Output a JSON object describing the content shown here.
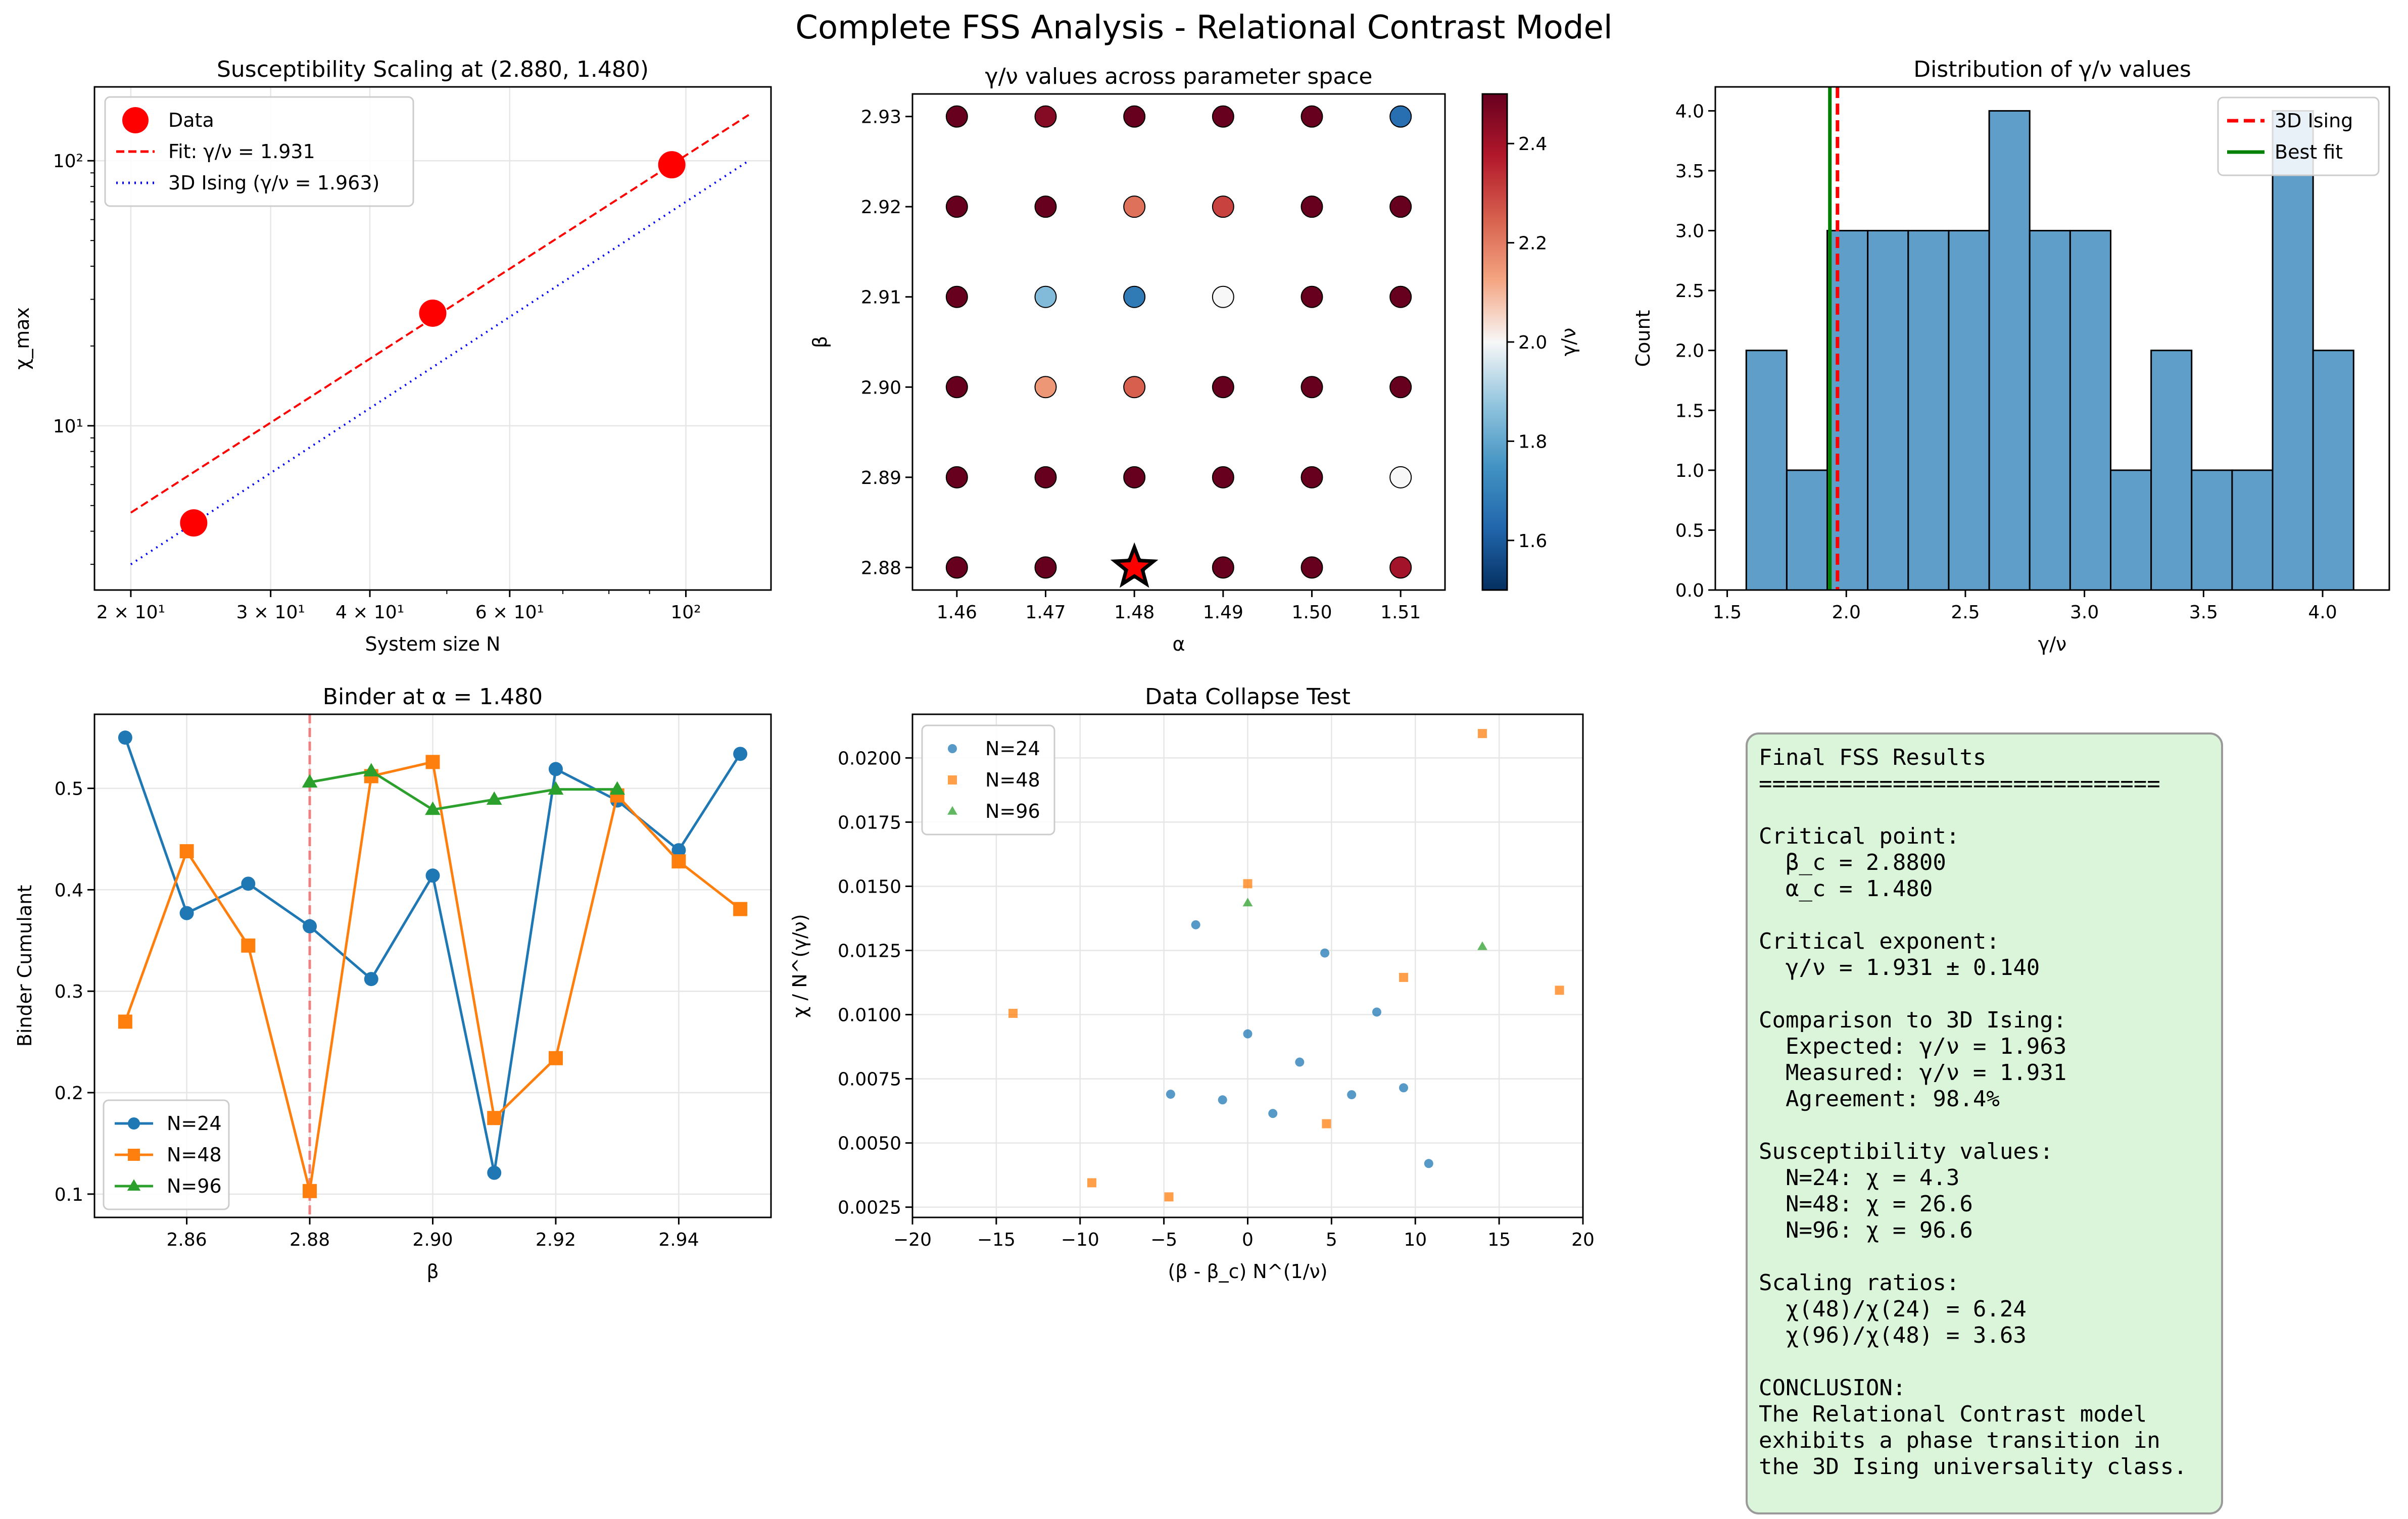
{
  "figure_title": "Complete FSS Analysis - Relational Contrast Model",
  "chart_data": [
    {
      "id": "susceptibility",
      "type": "scatter",
      "title": "Susceptibility Scaling at (2.880, 1.480)",
      "xlabel": "System size N",
      "ylabel": "χ_max",
      "xscale": "log",
      "yscale": "log",
      "xlim": [
        18,
        128
      ],
      "ylim": [
        2.4,
        190
      ],
      "xticks": [
        20,
        30,
        40,
        60,
        100
      ],
      "xtick_labels": [
        "2 × 10¹",
        "3 × 10¹",
        "4 × 10¹",
        "6 × 10¹",
        "10²"
      ],
      "yticks": [
        10,
        100
      ],
      "ytick_labels": [
        "10¹",
        "10²"
      ],
      "grid": true,
      "legend": "top-left",
      "series": [
        {
          "name": "Data",
          "kind": "points",
          "color": "#ff0000",
          "x": [
            24,
            48,
            96
          ],
          "y": [
            4.3,
            26.6,
            96.6
          ]
        },
        {
          "name": "Fit: γ/ν = 1.931",
          "kind": "dashed",
          "color": "#ff0000",
          "x": [
            20,
            120
          ],
          "y": [
            4.7,
            149
          ]
        },
        {
          "name": "3D Ising (γ/ν = 1.963)",
          "kind": "dotted",
          "color": "#0000ff",
          "x": [
            20,
            120
          ],
          "y": [
            3.0,
            100
          ]
        }
      ]
    },
    {
      "id": "parameter_space",
      "type": "scatter",
      "title": "γ/ν values across parameter space",
      "xlabel": "α",
      "ylabel": "β",
      "xlim": [
        1.455,
        1.515
      ],
      "ylim": [
        2.8775,
        2.9325
      ],
      "xticks": [
        1.46,
        1.47,
        1.48,
        1.49,
        1.5,
        1.51
      ],
      "xtick_labels": [
        "1.46",
        "1.47",
        "1.48",
        "1.49",
        "1.50",
        "1.51"
      ],
      "yticks": [
        2.88,
        2.89,
        2.9,
        2.91,
        2.92,
        2.93
      ],
      "ytick_labels": [
        "2.88",
        "2.89",
        "2.90",
        "2.91",
        "2.92",
        "2.93"
      ],
      "alpha": [
        1.46,
        1.47,
        1.48,
        1.49,
        1.5,
        1.51
      ],
      "beta": [
        2.88,
        2.89,
        2.9,
        2.91,
        2.92,
        2.93
      ],
      "values": [
        [
          3.5,
          3.2,
          3.0,
          3.4,
          3.3,
          2.4
        ],
        [
          3.4,
          3.1,
          3.2,
          3.5,
          3.0,
          2.0
        ],
        [
          3.6,
          2.15,
          2.25,
          3.3,
          3.4,
          3.1
        ],
        [
          3.2,
          1.85,
          1.68,
          2.0,
          3.3,
          3.5
        ],
        [
          3.5,
          3.3,
          2.22,
          2.3,
          3.4,
          3.2
        ],
        [
          3.0,
          2.45,
          3.1,
          3.3,
          3.2,
          1.65
        ]
      ],
      "highlight": {
        "alpha": 1.48,
        "beta": 2.88,
        "color": "#ff0000"
      },
      "colorbar": {
        "label": "γ/ν",
        "min": 1.5,
        "max": 2.5,
        "ticks": [
          1.6,
          1.8,
          2.0,
          2.2,
          2.4
        ],
        "tick_labels": [
          "1.6",
          "1.8",
          "2.0",
          "2.2",
          "2.4"
        ]
      }
    },
    {
      "id": "distribution",
      "type": "bar",
      "title": "Distribution of γ/ν values",
      "xlabel": "γ/ν",
      "ylabel": "Count",
      "xlim": [
        1.45,
        4.28
      ],
      "ylim": [
        0,
        4.2
      ],
      "xticks": [
        1.5,
        2.0,
        2.5,
        3.0,
        3.5,
        4.0
      ],
      "xtick_labels": [
        "1.5",
        "2.0",
        "2.5",
        "3.0",
        "3.5",
        "4.0"
      ],
      "yticks": [
        0,
        0.5,
        1.0,
        1.5,
        2.0,
        2.5,
        3.0,
        3.5,
        4.0
      ],
      "ytick_labels": [
        "0.0",
        "0.5",
        "1.0",
        "1.5",
        "2.0",
        "2.5",
        "3.0",
        "3.5",
        "4.0"
      ],
      "bin_edges": [
        1.58,
        1.75,
        1.92,
        2.09,
        2.26,
        2.43,
        2.6,
        2.77,
        2.94,
        3.11,
        3.28,
        3.45,
        3.62,
        3.79,
        3.96,
        4.13
      ],
      "counts": [
        2,
        1,
        3,
        3,
        3,
        3,
        4,
        3,
        3,
        1,
        2,
        1,
        1,
        4,
        2
      ],
      "color": "#5f9ec9",
      "legend": "top-right",
      "vlines": [
        {
          "name": "3D Ising",
          "x": 1.963,
          "color": "#ff0000",
          "style": "dashed"
        },
        {
          "name": "Best fit",
          "x": 1.931,
          "color": "#008000",
          "style": "solid"
        }
      ]
    },
    {
      "id": "binder",
      "type": "line",
      "title": "Binder at α = 1.480",
      "xlabel": "β",
      "ylabel": "Binder Cumulant",
      "xlim": [
        2.845,
        2.955
      ],
      "ylim": [
        0.077,
        0.573
      ],
      "xticks": [
        2.86,
        2.88,
        2.9,
        2.92,
        2.94
      ],
      "xtick_labels": [
        "2.86",
        "2.88",
        "2.90",
        "2.92",
        "2.94"
      ],
      "yticks": [
        0.1,
        0.2,
        0.3,
        0.4,
        0.5
      ],
      "ytick_labels": [
        "0.1",
        "0.2",
        "0.3",
        "0.4",
        "0.5"
      ],
      "grid": true,
      "legend": "bottom-left",
      "vline": {
        "x": 2.88,
        "color": "#f08080",
        "style": "dashed"
      },
      "series": [
        {
          "name": "N=24",
          "color": "#1f77b4",
          "marker": "circle",
          "x": [
            2.85,
            2.86,
            2.87,
            2.88,
            2.89,
            2.9,
            2.91,
            2.92,
            2.93,
            2.94,
            2.95
          ],
          "y": [
            0.55,
            0.377,
            0.406,
            0.364,
            0.312,
            0.414,
            0.121,
            0.519,
            0.488,
            0.439,
            0.534
          ]
        },
        {
          "name": "N=48",
          "color": "#ff7f0e",
          "marker": "square",
          "x": [
            2.85,
            2.86,
            2.87,
            2.88,
            2.89,
            2.9,
            2.91,
            2.92,
            2.93,
            2.94,
            2.95
          ],
          "y": [
            0.27,
            0.438,
            0.345,
            0.103,
            0.512,
            0.526,
            0.175,
            0.234,
            0.493,
            0.428,
            0.381
          ]
        },
        {
          "name": "N=96",
          "color": "#2ca02c",
          "marker": "triangle",
          "x": [
            2.88,
            2.89,
            2.9,
            2.91,
            2.92,
            2.93
          ],
          "y": [
            0.506,
            0.517,
            0.479,
            0.489,
            0.499,
            0.499
          ]
        }
      ]
    },
    {
      "id": "collapse",
      "type": "scatter",
      "title": "Data Collapse Test",
      "xlabel": "(β - β_c) N^(1/ν)",
      "ylabel": "χ / N^(γ/ν)",
      "xlim": [
        -20,
        20
      ],
      "ylim": [
        0.0021,
        0.0217
      ],
      "xticks": [
        -20,
        -15,
        -10,
        -5,
        0,
        5,
        10,
        15,
        20
      ],
      "xtick_labels": [
        "−20",
        "−15",
        "−10",
        "−5",
        "0",
        "5",
        "10",
        "15",
        "20"
      ],
      "yticks": [
        0.0025,
        0.005,
        0.0075,
        0.01,
        0.0125,
        0.015,
        0.0175,
        0.02
      ],
      "ytick_labels": [
        "0.0025",
        "0.0050",
        "0.0075",
        "0.0100",
        "0.0125",
        "0.0150",
        "0.0175",
        "0.0200"
      ],
      "grid": true,
      "legend": "top-left",
      "series": [
        {
          "name": "N=24",
          "color": "#1f77b4",
          "marker": "circle",
          "x": [
            -3.1,
            -4.6,
            -1.5,
            0.0,
            1.5,
            3.1,
            4.6,
            6.2,
            7.7,
            9.3,
            10.8
          ],
          "y": [
            0.0135,
            0.0069,
            0.00668,
            0.00925,
            0.00615,
            0.00815,
            0.0124,
            0.00688,
            0.0101,
            0.00715,
            0.0042
          ]
        },
        {
          "name": "N=48",
          "color": "#ff7f0e",
          "marker": "square",
          "x": [
            -14.0,
            -9.3,
            -4.7,
            0.0,
            4.7,
            9.3,
            14.0,
            18.6
          ],
          "y": [
            0.01005,
            0.00345,
            0.0029,
            0.0151,
            0.00575,
            0.01145,
            0.02095,
            0.01095
          ]
        },
        {
          "name": "N=96",
          "color": "#2ca02c",
          "marker": "triangle",
          "x": [
            0.0,
            14.0
          ],
          "y": [
            0.01435,
            0.01265
          ]
        }
      ]
    }
  ],
  "results_text": "Final FSS Results\n==============================\n\nCritical point:\n  β_c = 2.8800\n  α_c = 1.480\n\nCritical exponent:\n  γ/ν = 1.931 ± 0.140\n\nComparison to 3D Ising:\n  Expected: γ/ν = 1.963\n  Measured: γ/ν = 1.931\n  Agreement: 98.4%\n\nSusceptibility values:\n  N=24: χ = 4.3\n  N=48: χ = 26.6\n  N=96: χ = 96.6\n\nScaling ratios:\n  χ(48)/χ(24) = 6.24\n  χ(96)/χ(48) = 3.63\n\nCONCLUSION:\nThe Relational Contrast model\nexhibits a phase transition in\nthe 3D Ising universality class."
}
